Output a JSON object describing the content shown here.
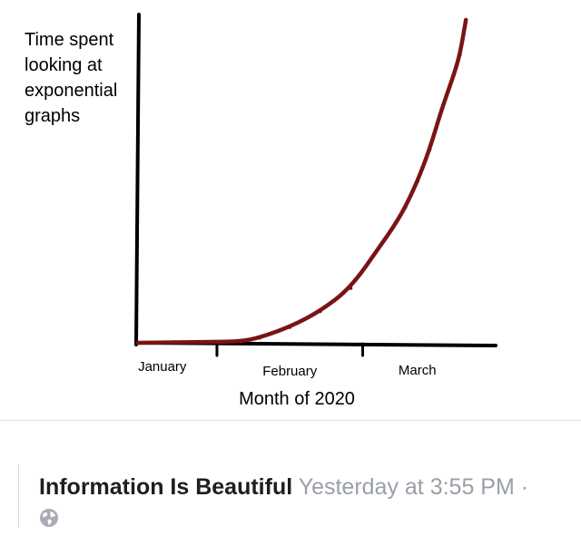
{
  "chart_data": {
    "type": "line",
    "ylabel_lines": [
      "Time spent",
      "looking at",
      "exponential",
      "graphs"
    ],
    "xlabel": "Month of 2020",
    "categories": [
      "January",
      "February",
      "March"
    ],
    "series": [
      {
        "color": "#7a1414",
        "x": [
          0,
          0.3,
          0.6,
          0.85,
          1.0,
          1.25,
          1.5,
          1.75,
          2.0,
          2.1,
          2.2,
          2.3,
          2.4,
          2.5,
          2.6,
          2.65,
          2.7
        ],
        "y": [
          0,
          0.2,
          0.3,
          0.5,
          1.8,
          5.5,
          11,
          19,
          34,
          40,
          47,
          56,
          67,
          81,
          93,
          100,
          112
        ]
      }
    ],
    "xlim": [
      0,
      2.9
    ],
    "ylim": [
      0,
      112
    ],
    "grid": false,
    "legend": "none"
  },
  "post": {
    "author": "Information Is Beautiful",
    "timestamp": "Yesterday at 3:55 PM",
    "separator": "·",
    "privacy_icon": "globe-icon"
  }
}
